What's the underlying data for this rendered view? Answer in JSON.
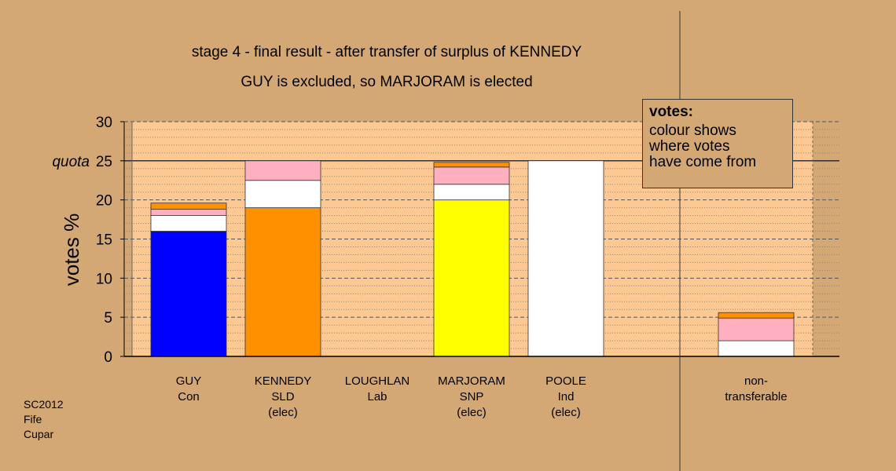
{
  "chart_data": {
    "type": "bar",
    "stacked": true,
    "title": "stage 4 - final result - after transfer of surplus of KENNEDY",
    "subtitle": "GUY is excluded, so MARJORAM is elected",
    "ylabel": "votes %",
    "ylim": [
      0,
      30
    ],
    "yticks": [
      0,
      5,
      10,
      15,
      20,
      25,
      30
    ],
    "quota": 25,
    "quota_label": "quota",
    "grid": true,
    "categories": [
      {
        "line1": "GUY",
        "line2": "Con",
        "line3": ""
      },
      {
        "line1": "KENNEDY",
        "line2": "SLD",
        "line3": "(elec)"
      },
      {
        "line1": "LOUGHLAN",
        "line2": "Lab",
        "line3": ""
      },
      {
        "line1": "MARJORAM",
        "line2": "SNP",
        "line3": "(elec)"
      },
      {
        "line1": "POOLE",
        "line2": "Ind",
        "line3": "(elec)"
      },
      {
        "line1": "non-",
        "line2": "transferable",
        "line3": ""
      }
    ],
    "series": [
      {
        "color": "#0000ff",
        "values": [
          16.0,
          0,
          0,
          0,
          0,
          0
        ]
      },
      {
        "color": "#ff9000",
        "values": [
          0,
          19.0,
          0,
          0,
          0,
          0
        ]
      },
      {
        "color": "#ffff00",
        "values": [
          0,
          0,
          0,
          20.0,
          0,
          0
        ]
      },
      {
        "color": "#ffffff",
        "values": [
          2.0,
          3.5,
          0,
          2.0,
          25.0,
          2.0
        ]
      },
      {
        "color": "#ffb0c0",
        "values": [
          0.8,
          2.5,
          0,
          2.2,
          0,
          2.9
        ]
      },
      {
        "color": "#ff9000",
        "values": [
          0.8,
          0,
          0,
          0.6,
          0,
          0.7
        ]
      }
    ]
  },
  "legend": {
    "title": "votes:",
    "body": "colour shows\nwhere votes\nhave come from"
  },
  "footnote": [
    "SC2012",
    "Fife",
    "Cupar"
  ]
}
